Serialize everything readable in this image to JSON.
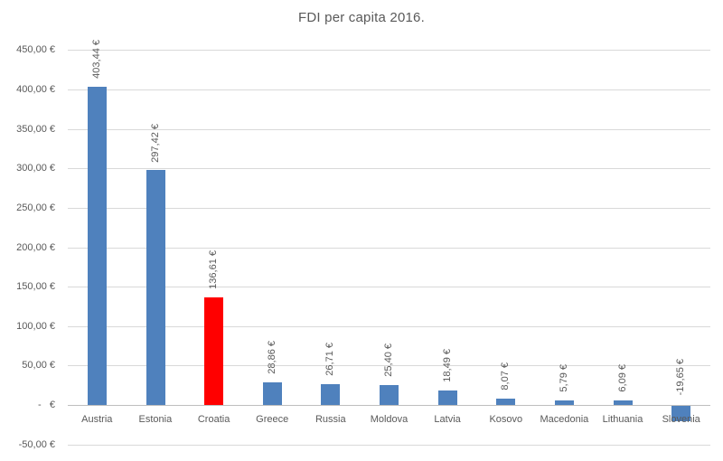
{
  "chart_data": {
    "type": "bar",
    "title": "FDI per capita 2016.",
    "categories": [
      "Austria",
      "Estonia",
      "Croatia",
      "Greece",
      "Russia",
      "Moldova",
      "Latvia",
      "Kosovo",
      "Macedonia",
      "Lithuania",
      "Slovenia"
    ],
    "values": [
      403.44,
      297.42,
      136.61,
      28.86,
      26.71,
      25.4,
      18.49,
      8.07,
      5.79,
      6.09,
      -19.65
    ],
    "bar_labels": [
      "403,44 €",
      "297,42 €",
      "136,61 €",
      "28,86 €",
      "26,71 €",
      "25,40 €",
      "18,49 €",
      "8,07 €",
      "5,79 €",
      "6,09 €",
      "-19,65 €"
    ],
    "bar_colors": [
      "#4F81BD",
      "#4F81BD",
      "#FF0000",
      "#4F81BD",
      "#4F81BD",
      "#4F81BD",
      "#4F81BD",
      "#4F81BD",
      "#4F81BD",
      "#4F81BD",
      "#4F81BD"
    ],
    "highlight_category": "Croatia",
    "y_ticks": [
      {
        "value": 450,
        "label": "450,00 €"
      },
      {
        "value": 400,
        "label": "400,00 €"
      },
      {
        "value": 350,
        "label": "350,00 €"
      },
      {
        "value": 300,
        "label": "300,00 €"
      },
      {
        "value": 250,
        "label": "250,00 €"
      },
      {
        "value": 200,
        "label": "200,00 €"
      },
      {
        "value": 150,
        "label": "150,00 €"
      },
      {
        "value": 100,
        "label": "100,00 €"
      },
      {
        "value": 50,
        "label": "50,00 €"
      },
      {
        "value": 0,
        "label": "-   €"
      },
      {
        "value": -50,
        "label": "-50,00 €"
      }
    ],
    "xlabel": "",
    "ylabel": "",
    "ylim": [
      -50,
      475
    ],
    "grid": true,
    "legend": false,
    "colors": {
      "bar_default": "#4F81BD",
      "bar_highlight": "#FF0000",
      "gridline": "#D9D9D9",
      "axis_line": "#BFBFBF",
      "text": "#595959"
    }
  }
}
